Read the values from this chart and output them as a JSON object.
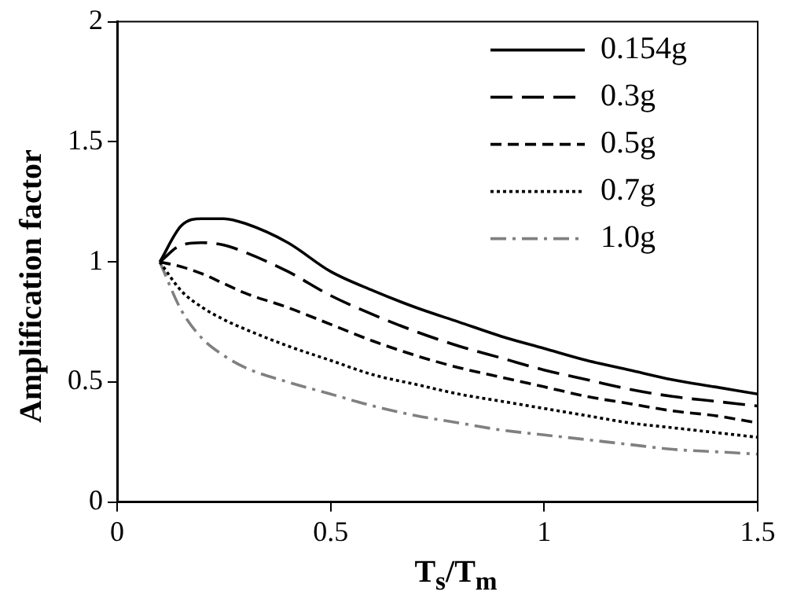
{
  "chart_data": {
    "type": "line",
    "xlabel": "T$_{s}$/T$_{m}$",
    "ylabel": "Amplification factor",
    "x": [
      0.1,
      0.15,
      0.2,
      0.25,
      0.3,
      0.4,
      0.5,
      0.6,
      0.7,
      0.8,
      0.9,
      1.0,
      1.1,
      1.2,
      1.3,
      1.4,
      1.5
    ],
    "xlim": [
      0,
      1.5
    ],
    "xticks": [
      0,
      0.5,
      1,
      1.5
    ],
    "ylim": [
      0,
      2
    ],
    "yticks": [
      0,
      0.5,
      1,
      1.5,
      2
    ],
    "grid": false,
    "legend": "top right",
    "marker": "none",
    "series": [
      {
        "name": "0.154g",
        "color": "#000000",
        "line_style": "solid",
        "values": [
          1,
          1.15,
          1.18,
          1.18,
          1.16,
          1.08,
          0.96,
          0.88,
          0.81,
          0.75,
          0.69,
          0.64,
          0.59,
          0.55,
          0.51,
          0.48,
          0.45
        ]
      },
      {
        "name": "0.3g",
        "color": "#000000",
        "line_style": "longdash",
        "values": [
          1,
          1.07,
          1.08,
          1.07,
          1.04,
          0.96,
          0.86,
          0.78,
          0.71,
          0.65,
          0.6,
          0.55,
          0.51,
          0.47,
          0.44,
          0.42,
          0.4
        ]
      },
      {
        "name": "0.5g",
        "color": "#000000",
        "line_style": "dashed",
        "values": [
          1,
          0.98,
          0.95,
          0.91,
          0.87,
          0.81,
          0.74,
          0.67,
          0.61,
          0.56,
          0.52,
          0.48,
          0.44,
          0.41,
          0.38,
          0.36,
          0.33
        ]
      },
      {
        "name": "0.7g",
        "color": "#000000",
        "line_style": "dotted",
        "values": [
          1,
          0.88,
          0.81,
          0.76,
          0.72,
          0.65,
          0.59,
          0.53,
          0.49,
          0.45,
          0.42,
          0.39,
          0.36,
          0.33,
          0.31,
          0.29,
          0.27
        ]
      },
      {
        "name": "1.0g",
        "color": "#808080",
        "line_style": "dashdot",
        "values": [
          1,
          0.8,
          0.68,
          0.61,
          0.56,
          0.5,
          0.45,
          0.4,
          0.36,
          0.33,
          0.3,
          0.28,
          0.26,
          0.24,
          0.22,
          0.21,
          0.2
        ]
      }
    ]
  }
}
